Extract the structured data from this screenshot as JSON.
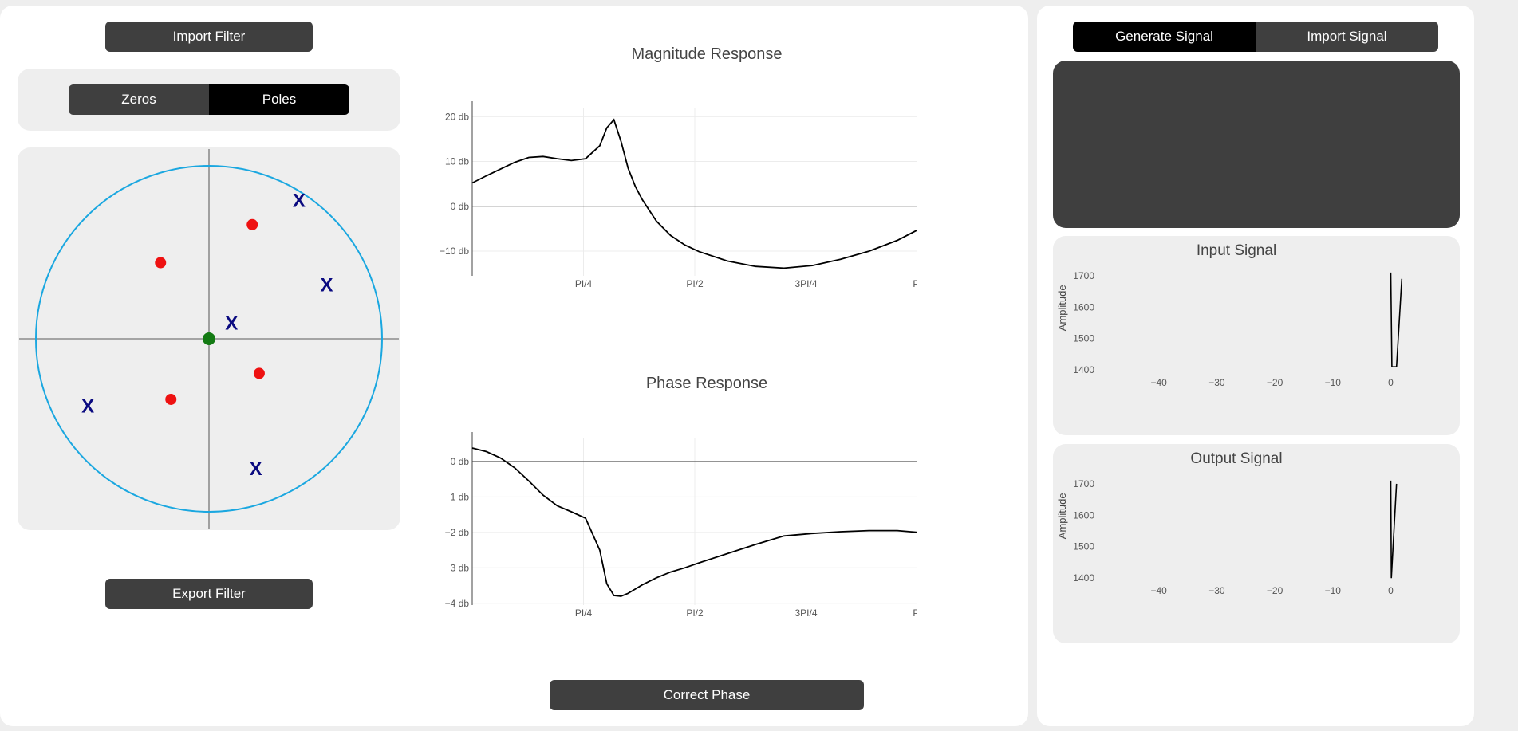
{
  "filter_panel": {
    "import_label": "Import Filter",
    "export_label": "Export Filter",
    "mode_tabs": [
      {
        "label": "Zeros",
        "active": false
      },
      {
        "label": "Poles",
        "active": true
      }
    ],
    "zplane": {
      "zeros": [
        {
          "re": 0.25,
          "im": 0.66
        },
        {
          "re": -0.28,
          "im": 0.44
        },
        {
          "re": 0.29,
          "im": -0.2
        },
        {
          "re": -0.22,
          "im": -0.35
        }
      ],
      "poles": [
        {
          "re": 0.52,
          "im": 0.8
        },
        {
          "re": 0.68,
          "im": 0.31
        },
        {
          "re": 0.13,
          "im": 0.09
        },
        {
          "re": -0.7,
          "im": -0.39
        },
        {
          "re": 0.27,
          "im": -0.75
        }
      ],
      "selected": {
        "re": 0.0,
        "im": 0.0
      },
      "pole_symbol": "X",
      "colors": {
        "circle": "#1aa7e0",
        "zero": "#ee1111",
        "pole": "#0a0a80",
        "selected": "#137a13",
        "axes": "#777777"
      }
    }
  },
  "magnitude": {
    "title": "Magnitude Response",
    "chart_data": {
      "type": "line",
      "xlim": [
        0,
        3.14159
      ],
      "ylim": [
        -15.5,
        22
      ],
      "xticks": [
        {
          "v": 0.7854,
          "label": "PI/4"
        },
        {
          "v": 1.5708,
          "label": "PI/2"
        },
        {
          "v": 2.3562,
          "label": "3PI/4"
        },
        {
          "v": 3.14159,
          "label": "PI"
        }
      ],
      "yticks": [
        {
          "v": 20,
          "label": "20 db"
        },
        {
          "v": 10,
          "label": "10 db"
        },
        {
          "v": 0,
          "label": "0 db"
        },
        {
          "v": -10,
          "label": "−10 db"
        }
      ],
      "x": [
        0,
        0.1,
        0.2,
        0.3,
        0.4,
        0.5,
        0.6,
        0.7,
        0.8,
        0.9,
        0.95,
        1.0,
        1.05,
        1.1,
        1.15,
        1.2,
        1.3,
        1.4,
        1.5,
        1.6,
        1.8,
        2.0,
        2.2,
        2.4,
        2.6,
        2.8,
        3.0,
        3.14159
      ],
      "y": [
        5.2,
        6.8,
        8.3,
        9.8,
        10.9,
        11.1,
        10.6,
        10.2,
        10.6,
        13.5,
        17.5,
        19.3,
        14.5,
        8.5,
        4.5,
        1.5,
        -3.3,
        -6.5,
        -8.6,
        -10.1,
        -12.2,
        -13.4,
        -13.8,
        -13.2,
        -11.8,
        -10.0,
        -7.6,
        -5.3
      ]
    }
  },
  "phase": {
    "title": "Phase Response",
    "chart_data": {
      "type": "line",
      "xlim": [
        0,
        3.14159
      ],
      "ylim": [
        -4.05,
        0.65
      ],
      "xticks": [
        {
          "v": 0.7854,
          "label": "PI/4"
        },
        {
          "v": 1.5708,
          "label": "PI/2"
        },
        {
          "v": 2.3562,
          "label": "3PI/4"
        },
        {
          "v": 3.14159,
          "label": "PI"
        }
      ],
      "yticks": [
        {
          "v": 0,
          "label": "0 db"
        },
        {
          "v": -1,
          "label": "−1 db"
        },
        {
          "v": -2,
          "label": "−2 db"
        },
        {
          "v": -3,
          "label": "−3 db"
        },
        {
          "v": -4,
          "label": "−4 db"
        }
      ],
      "x": [
        0,
        0.1,
        0.2,
        0.3,
        0.4,
        0.5,
        0.6,
        0.7,
        0.8,
        0.9,
        0.95,
        1.0,
        1.05,
        1.1,
        1.15,
        1.2,
        1.3,
        1.4,
        1.5,
        1.6,
        1.8,
        2.0,
        2.2,
        2.4,
        2.6,
        2.8,
        3.0,
        3.14159
      ],
      "y": [
        0.38,
        0.28,
        0.1,
        -0.18,
        -0.55,
        -0.95,
        -1.25,
        -1.42,
        -1.6,
        -2.5,
        -3.45,
        -3.78,
        -3.8,
        -3.72,
        -3.6,
        -3.48,
        -3.28,
        -3.12,
        -3.0,
        -2.86,
        -2.6,
        -2.34,
        -2.1,
        -2.03,
        -1.98,
        -1.95,
        -1.95,
        -2.0
      ]
    }
  },
  "correct_phase_label": "Correct Phase",
  "signal_panel": {
    "tabs": [
      {
        "label": "Generate Signal",
        "active": true
      },
      {
        "label": "Import Signal",
        "active": false
      }
    ],
    "input": {
      "title": "Input Signal",
      "chart_data": {
        "type": "line",
        "ylabel": "Amplitude",
        "xlim": [
          -50,
          2
        ],
        "ylim": [
          1370,
          1720
        ],
        "xticks": [
          -40,
          -30,
          -20,
          -10,
          0
        ],
        "yticks": [
          1400,
          1500,
          1600,
          1700
        ],
        "x": [
          0,
          0.2,
          1.0,
          1.9
        ],
        "y": [
          1710,
          1410,
          1410,
          1690
        ]
      }
    },
    "output": {
      "title": "Output Signal",
      "chart_data": {
        "type": "line",
        "ylabel": "Amplitude",
        "xlim": [
          -50,
          2
        ],
        "ylim": [
          1370,
          1720
        ],
        "xticks": [
          -40,
          -30,
          -20,
          -10,
          0
        ],
        "yticks": [
          1400,
          1500,
          1600,
          1700
        ],
        "x": [
          0,
          0.1,
          1.0
        ],
        "y": [
          1710,
          1400,
          1700
        ]
      }
    }
  }
}
